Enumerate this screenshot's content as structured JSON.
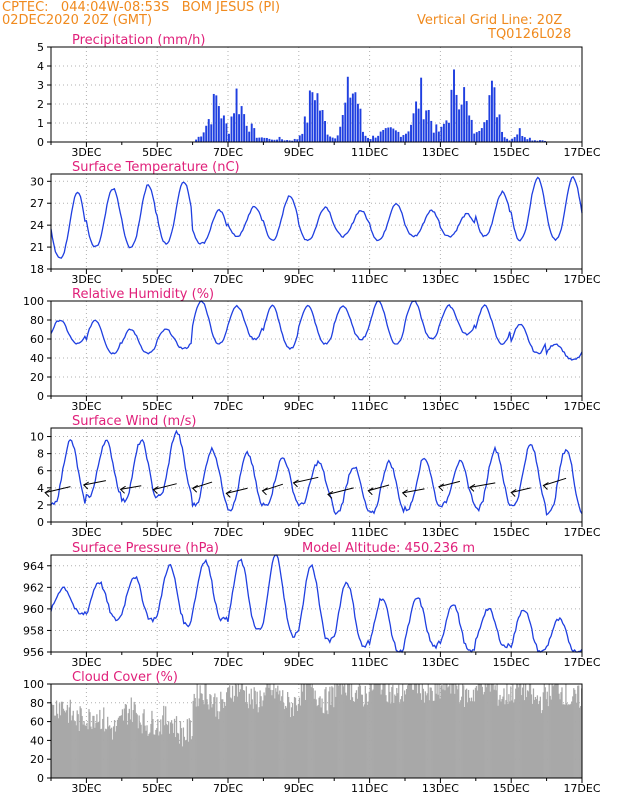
{
  "header": {
    "line1_left": "CPTEC:   044:04W-08:53S   BOM JESUS (PI)",
    "line2_left": "02DEC2020 20Z (GMT)",
    "line1_right": "Vertical Grid Line: 20Z",
    "line2_right": "TQ0126L028"
  },
  "colors": {
    "header": "#f08a1e",
    "title": "#e0207a",
    "line": "#1f3fe0",
    "cloud": "#a8a8a8",
    "grid": "#b0b0b0"
  },
  "chart_data": [
    {
      "type": "bar",
      "title": "Precipitation (mm/h)",
      "x_labels": [
        "3DEC",
        "5DEC",
        "7DEC",
        "9DEC",
        "11DEC",
        "13DEC",
        "15DEC",
        "17DEC"
      ],
      "ylim": [
        0,
        5
      ],
      "yticks": [
        0,
        1,
        2,
        3,
        4,
        5
      ],
      "grid": true,
      "series": [
        {
          "values_by_day": [
            {
              "day": "02DEC",
              "values": [
                0,
                0,
                0,
                0,
                0,
                0
              ]
            },
            {
              "day": "03DEC",
              "values": [
                0,
                0,
                0,
                0,
                0,
                0
              ]
            },
            {
              "day": "04DEC",
              "values": [
                0,
                0,
                0,
                0,
                0,
                0
              ]
            },
            {
              "day": "05DEC",
              "values": [
                0,
                0,
                0,
                0,
                0,
                0
              ]
            },
            {
              "day": "06DEC",
              "values": [
                0,
                0.3,
                0.8,
                1.5,
                2.4,
                1.2,
                0.6
              ]
            },
            {
              "day": "07DEC",
              "values": [
                0.7,
                2.5,
                1.6,
                0.8,
                0.3,
                0.1
              ]
            },
            {
              "day": "08DEC",
              "values": [
                0.3,
                0.1,
                0.2,
                0.1,
                0.1,
                0.2
              ]
            },
            {
              "day": "09DEC",
              "values": [
                0.4,
                1.2,
                3.1,
                1.6,
                0.5,
                0.1
              ]
            },
            {
              "day": "10DEC",
              "values": [
                0.3,
                1.1,
                2.8,
                2.6,
                0.4,
                0.2
              ]
            },
            {
              "day": "11DEC",
              "values": [
                0.2,
                0.4,
                0.5,
                0.6,
                0.5,
                0.4
              ]
            },
            {
              "day": "12DEC",
              "values": [
                0.5,
                1.2,
                2.5,
                1.8,
                0.7,
                0.5
              ]
            },
            {
              "day": "13DEC",
              "values": [
                0.6,
                1.4,
                3.2,
                2.8,
                1.1,
                0.3
              ]
            },
            {
              "day": "14DEC",
              "values": [
                0.4,
                1.6,
                2.6,
                1.8,
                0.2,
                0.1
              ]
            },
            {
              "day": "15DEC",
              "values": [
                0.2,
                0.6,
                0.3,
                0.1,
                0.1,
                0.1
              ]
            },
            {
              "day": "16DEC",
              "values": [
                0,
                0,
                0,
                0,
                0,
                0
              ]
            }
          ]
        }
      ]
    },
    {
      "type": "line",
      "title": "Surface Temperature (nC)",
      "x_labels": [
        "3DEC",
        "5DEC",
        "7DEC",
        "9DEC",
        "11DEC",
        "13DEC",
        "15DEC",
        "17DEC"
      ],
      "ylim": [
        18,
        31
      ],
      "yticks": [
        18,
        21,
        24,
        27,
        30
      ],
      "grid": true,
      "daily_min": [
        19.5,
        21.0,
        21.0,
        21.5,
        21.5,
        22.5,
        22.0,
        22.0,
        22.5,
        22.0,
        22.5,
        22.5,
        22.5,
        22.0,
        22.0
      ],
      "daily_max": [
        28.5,
        29.0,
        29.5,
        30.0,
        26.0,
        26.5,
        28.0,
        26.5,
        26.0,
        27.0,
        26.0,
        25.5,
        28.5,
        30.5,
        30.5
      ]
    },
    {
      "type": "line",
      "title": "Relative Humidity (%)",
      "x_labels": [
        "3DEC",
        "5DEC",
        "7DEC",
        "9DEC",
        "11DEC",
        "13DEC",
        "15DEC",
        "17DEC"
      ],
      "ylim": [
        0,
        100
      ],
      "yticks": [
        0,
        20,
        40,
        60,
        80,
        100
      ],
      "grid": true,
      "daily_min": [
        55,
        45,
        45,
        50,
        55,
        60,
        50,
        55,
        60,
        55,
        60,
        65,
        55,
        45,
        38
      ],
      "daily_max": [
        80,
        80,
        70,
        70,
        100,
        95,
        95,
        95,
        95,
        100,
        100,
        95,
        95,
        75,
        55
      ]
    },
    {
      "type": "line",
      "title": "Surface Wind (m/s)",
      "x_labels": [
        "3DEC",
        "5DEC",
        "7DEC",
        "9DEC",
        "11DEC",
        "13DEC",
        "15DEC",
        "17DEC"
      ],
      "ylim": [
        0,
        11
      ],
      "yticks": [
        0,
        2,
        4,
        6,
        8,
        10
      ],
      "grid": true,
      "daily_min": [
        2.0,
        3.0,
        2.5,
        3.0,
        2.0,
        1.5,
        2.0,
        2.0,
        1.0,
        1.0,
        1.5,
        2.0,
        1.5,
        2.0,
        1.0
      ],
      "daily_max": [
        9.5,
        9.5,
        9.5,
        10.5,
        8.5,
        8.0,
        7.5,
        7.0,
        6.5,
        7.0,
        7.5,
        7.0,
        8.5,
        9.0,
        8.5
      ],
      "arrows": "wind vectors from east-northeast"
    },
    {
      "type": "line",
      "title": "Surface Pressure (hPa)",
      "annotation": "Model Altitude: 450.236 m",
      "x_labels": [
        "3DEC",
        "5DEC",
        "7DEC",
        "9DEC",
        "11DEC",
        "13DEC",
        "15DEC",
        "17DEC"
      ],
      "ylim": [
        956,
        965
      ],
      "yticks": [
        956,
        958,
        960,
        962,
        964
      ],
      "grid": true,
      "daily_min": [
        959.5,
        959.0,
        959.0,
        958.5,
        959.0,
        958.0,
        957.5,
        957.0,
        956.5,
        956.0,
        956.5,
        956.0,
        956.5,
        956.0,
        956.0
      ],
      "daily_max": [
        962.0,
        962.5,
        963.0,
        964.0,
        964.5,
        964.5,
        965.0,
        964.0,
        962.5,
        961.0,
        961.0,
        960.5,
        960.0,
        960.0,
        959.0
      ]
    },
    {
      "type": "bar",
      "title": "Cloud Cover (%)",
      "x_labels": [
        "3DEC",
        "5DEC",
        "7DEC",
        "9DEC",
        "11DEC",
        "13DEC",
        "15DEC",
        "17DEC"
      ],
      "ylim": [
        0,
        100
      ],
      "yticks": [
        0,
        20,
        40,
        60,
        80,
        100
      ],
      "grid": true,
      "daily_mean": [
        70,
        60,
        65,
        55,
        85,
        90,
        85,
        90,
        95,
        95,
        95,
        95,
        95,
        90,
        90
      ]
    }
  ]
}
